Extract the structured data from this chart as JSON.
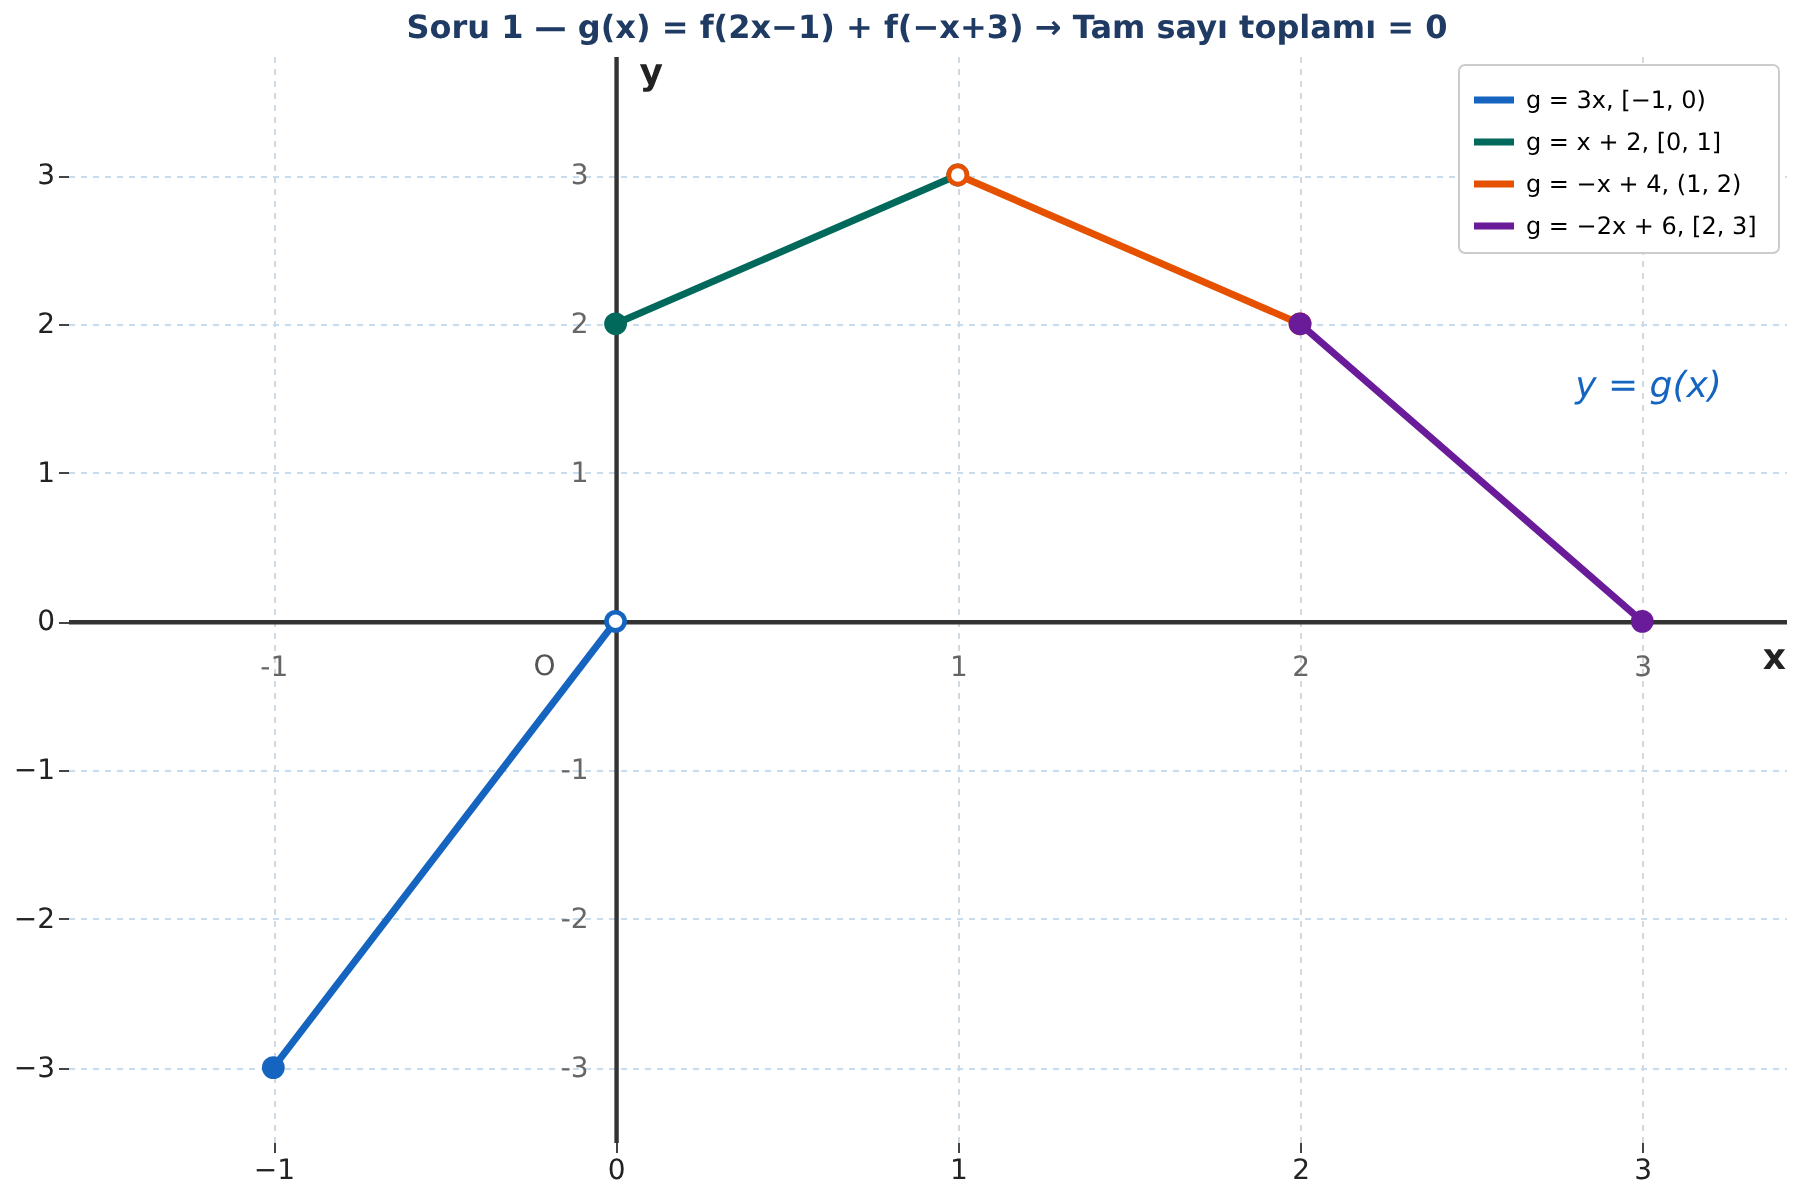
{
  "chart_data": {
    "type": "line",
    "title": "Soru 1 — g(x) = f(2x−1) + f(−x+3)  →  Tam sayı toplamı = 0",
    "x2label": "x",
    "y2label": "y",
    "xlim": [
      -1.6,
      3.42
    ],
    "ylim": [
      -3.5,
      3.8
    ],
    "xticks": [
      {
        "value": -1,
        "label": "−1"
      },
      0,
      1,
      2,
      3
    ],
    "yticks": [
      {
        "value": -3,
        "label": "−3"
      },
      {
        "value": -2,
        "label": "−2"
      },
      {
        "value": -1,
        "label": "−1"
      },
      0,
      1,
      2,
      3
    ],
    "x2lim": [
      -1.6,
      3.42
    ],
    "x2ticks": [
      -1,
      1,
      2,
      3
    ],
    "y2lim": [
      -3.5,
      3.8
    ],
    "y2ticks": [
      -3,
      -2,
      -1,
      1,
      2,
      3
    ],
    "grid": true,
    "legend": "top right",
    "marker": "circle",
    "line_style": "solid",
    "series": [
      {
        "name": "g = 3x,  [−1, 0)",
        "color": "#1565c0",
        "x": [
          -1,
          0
        ],
        "values": [
          -3,
          0
        ]
      },
      {
        "name": "g = x + 2,  [0, 1]",
        "color": "#00695c",
        "x": [
          0,
          1
        ],
        "values": [
          2,
          3
        ]
      },
      {
        "name": "g = −x + 4,  (1, 2)",
        "color": "#e65100",
        "x": [
          1,
          2
        ],
        "values": [
          3,
          2
        ]
      },
      {
        "name": "g = −2x + 6,  [2, 3]",
        "color": "#6a1b9a",
        "x": [
          2,
          3
        ],
        "values": [
          2,
          0
        ]
      },
      {
        "type": "scatter",
        "color": "#ffffff",
        "x": [
          0,
          1
        ],
        "values": [
          0,
          3
        ]
      }
    ],
    "annotations": [
      "y = g(x)",
      {
        "text": "O",
        "x": 0,
        "y": 0
      }
    ]
  }
}
